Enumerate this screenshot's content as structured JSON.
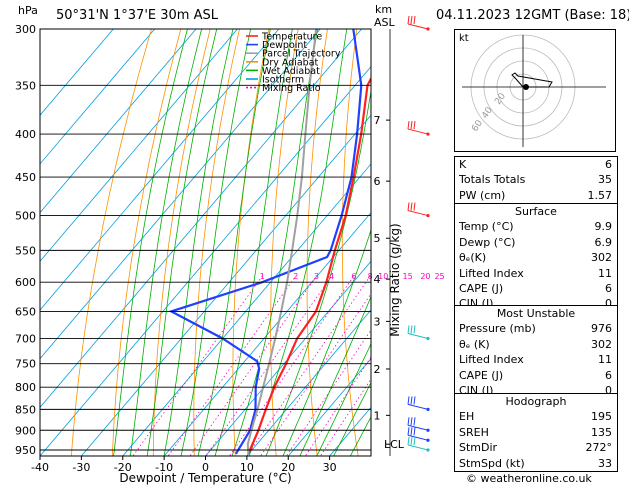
{
  "header": {
    "hpa_label": "hPa",
    "location": "50°31'N  1°37'E  30m  ASL",
    "km_label": "km",
    "asl_label": "ASL",
    "datetime": "04.11.2023  12GMT  (Base: 18)"
  },
  "colors": {
    "temperature": "#ff2020",
    "dewpoint": "#2040ff",
    "parcel": "#a0a0a0",
    "dry_adiabat": "#ff9000",
    "wet_adiabat": "#00b000",
    "isotherm": "#00a0e0",
    "mixing_ratio": "#ff00c0"
  },
  "chart_data": {
    "type": "line",
    "title": "Skew-T log-P diagram",
    "xlabel": "Dewpoint / Temperature (°C)",
    "ylabel_right": "Mixing Ratio (g/kg)",
    "pressure_levels": [
      300,
      350,
      400,
      450,
      500,
      550,
      600,
      650,
      700,
      750,
      800,
      850,
      900,
      950
    ],
    "x_ticks": [
      -40,
      -30,
      -20,
      -10,
      0,
      10,
      20,
      30
    ],
    "xlim": [
      -40,
      40
    ],
    "plim": [
      300,
      970
    ],
    "km_ticks": [
      {
        "label": "7",
        "p": 385
      },
      {
        "label": "6",
        "p": 455
      },
      {
        "label": "5",
        "p": 532
      },
      {
        "label": "4",
        "p": 595
      },
      {
        "label": "3",
        "p": 668
      },
      {
        "label": "2",
        "p": 761
      },
      {
        "label": "1",
        "p": 864
      },
      {
        "label": "LCL",
        "p": 935
      }
    ],
    "mixing_ratio_labels": [
      "1",
      "2",
      "3",
      "4",
      "6",
      "8",
      "10",
      "15",
      "20",
      "25"
    ],
    "mixing_ratio_values": [
      1,
      2,
      3,
      4,
      6,
      8,
      10,
      15,
      20,
      25
    ],
    "mixing_ratio_label_p": 590,
    "legend": [
      "Temperature",
      "Dewpoint",
      "Parcel Trajectory",
      "Dry Adiabat",
      "Wet Adiabat",
      "Isotherm",
      "Mixing Ratio"
    ],
    "series": [
      {
        "name": "Temperature",
        "color": "#ff2020",
        "points": [
          [
            960,
            9.9
          ],
          [
            900,
            7.5
          ],
          [
            850,
            5.0
          ],
          [
            800,
            2.5
          ],
          [
            750,
            0.5
          ],
          [
            700,
            -2.0
          ],
          [
            650,
            -3.0
          ],
          [
            600,
            -6.5
          ],
          [
            550,
            -11.0
          ],
          [
            500,
            -15.5
          ],
          [
            450,
            -21.5
          ],
          [
            400,
            -28.5
          ],
          [
            350,
            -37.0
          ],
          [
            320,
            -39.5
          ],
          [
            300,
            -41.0
          ]
        ]
      },
      {
        "name": "Dewpoint",
        "color": "#2040ff",
        "points": [
          [
            960,
            6.9
          ],
          [
            900,
            5.5
          ],
          [
            850,
            2.5
          ],
          [
            800,
            -2.0
          ],
          [
            760,
            -5.0
          ],
          [
            745,
            -7.0
          ],
          [
            700,
            -20.0
          ],
          [
            650,
            -38.0
          ],
          [
            600,
            -22.0
          ],
          [
            560,
            -11.5
          ],
          [
            550,
            -12.0
          ],
          [
            500,
            -16.5
          ],
          [
            450,
            -22.0
          ],
          [
            400,
            -29.5
          ],
          [
            350,
            -38.5
          ],
          [
            300,
            -52.0
          ]
        ]
      },
      {
        "name": "Parcel Trajectory",
        "color": "#a0a0a0",
        "points": [
          [
            960,
            9.9
          ],
          [
            935,
            7.8
          ],
          [
            900,
            5.8
          ],
          [
            850,
            3.0
          ],
          [
            800,
            -0.2
          ],
          [
            750,
            -3.6
          ],
          [
            700,
            -7.3
          ],
          [
            650,
            -11.4
          ],
          [
            600,
            -16.0
          ],
          [
            550,
            -21.3
          ],
          [
            500,
            -27.2
          ],
          [
            450,
            -34.0
          ],
          [
            400,
            -42.0
          ],
          [
            350,
            -51.0
          ],
          [
            300,
            -61.0
          ]
        ]
      }
    ],
    "wind_barbs": [
      {
        "p": 300,
        "color": "#ff2020"
      },
      {
        "p": 400,
        "color": "#ff2020"
      },
      {
        "p": 500,
        "color": "#ff2020"
      },
      {
        "p": 700,
        "color": "#20c0c0"
      },
      {
        "p": 850,
        "color": "#2040ff"
      },
      {
        "p": 900,
        "color": "#2040ff"
      },
      {
        "p": 925,
        "color": "#2040ff"
      },
      {
        "p": 950,
        "color": "#20c0c0"
      }
    ]
  },
  "hodograph": {
    "unit_label": "kt",
    "ring_labels": [
      "20",
      "40",
      "60"
    ]
  },
  "indices": [
    {
      "label": "K",
      "value": "6"
    },
    {
      "label": "Totals Totals",
      "value": "35"
    },
    {
      "label": "PW (cm)",
      "value": "1.57"
    }
  ],
  "surface": {
    "title": "Surface",
    "rows": [
      {
        "label": "Temp (°C)",
        "value": "9.9"
      },
      {
        "label": "Dewp (°C)",
        "value": "6.9"
      },
      {
        "label": "θₑ(K)",
        "value": "302"
      },
      {
        "label": "Lifted Index",
        "value": "11"
      },
      {
        "label": "CAPE (J)",
        "value": "6"
      },
      {
        "label": "CIN (J)",
        "value": "0"
      }
    ]
  },
  "most_unstable": {
    "title": "Most Unstable",
    "rows": [
      {
        "label": "Pressure (mb)",
        "value": "976"
      },
      {
        "label": "θₑ (K)",
        "value": "302"
      },
      {
        "label": "Lifted Index",
        "value": "11"
      },
      {
        "label": "CAPE (J)",
        "value": "6"
      },
      {
        "label": "CIN (J)",
        "value": "0"
      }
    ]
  },
  "hodograph_table": {
    "title": "Hodograph",
    "rows": [
      {
        "label": "EH",
        "value": "195"
      },
      {
        "label": "SREH",
        "value": "135"
      },
      {
        "label": "StmDir",
        "value": "272°"
      },
      {
        "label": "StmSpd (kt)",
        "value": "33"
      }
    ]
  },
  "footer": {
    "copyright": "© weatheronline.co.uk"
  }
}
